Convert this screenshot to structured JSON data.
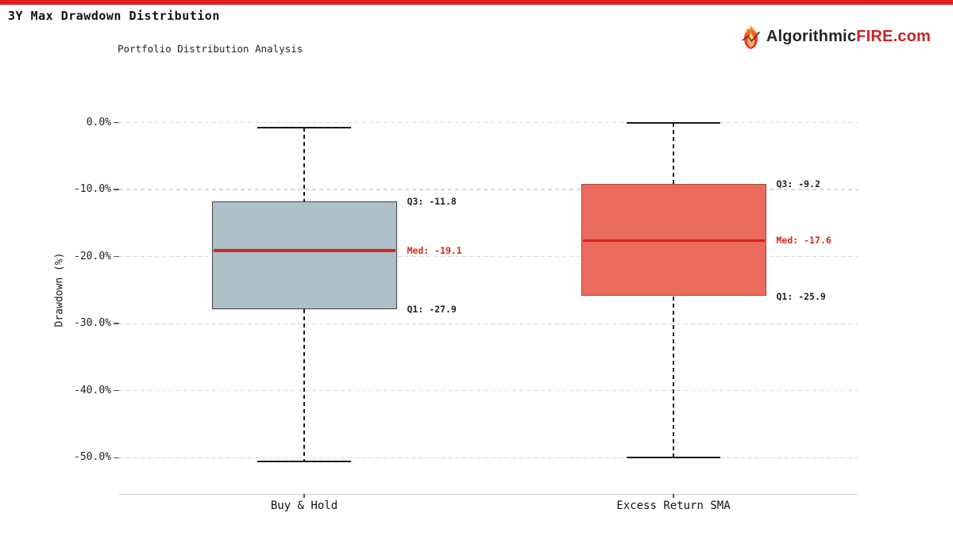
{
  "page": {
    "title": "3Y Max Drawdown Distribution",
    "subtitle": "Portfolio Distribution Analysis",
    "brand": {
      "prefix": "Algorithmic",
      "suffix": "FIRE.com",
      "icon": "fire-icon"
    }
  },
  "colors": {
    "accent_bar": "#dc1d1d",
    "brand_dark": "#262626",
    "brand_red": "#c5242b",
    "median_red": "#d62518",
    "annotation_text": "#1f1f1f",
    "grid": "#d9d9d9",
    "axis_line": "#cfcfcf",
    "tick": "#555555",
    "title_text": "#111111"
  },
  "chart_data": {
    "type": "boxplot",
    "title": "3Y Max Drawdown Distribution",
    "subtitle": "Portfolio Distribution Analysis",
    "ylabel": "Drawdown (%)",
    "ylim": [
      -55.5,
      3.0
    ],
    "yticks": [
      0,
      -10,
      -20,
      -30,
      -40,
      -50
    ],
    "ytick_labels": [
      "0.0%",
      "-10.0%",
      "-20.0%",
      "-30.0%",
      "-40.0%",
      "-50.0%"
    ],
    "grid": "dashed-horizontal",
    "categories": [
      "Buy & Hold",
      "Excess Return SMA"
    ],
    "series": [
      {
        "name": "Buy & Hold",
        "whisker_high": -0.8,
        "q3": -11.8,
        "median": -19.1,
        "q1": -27.9,
        "whisker_low": -50.5,
        "labels": {
          "q3": "Q3: -11.8",
          "median": "Med: -19.1",
          "q1": "Q1: -27.9"
        },
        "fill": "#aec0c9",
        "border": "#424242"
      },
      {
        "name": "Excess Return SMA",
        "whisker_high": 0.0,
        "q3": -9.2,
        "median": -17.6,
        "q1": -25.9,
        "whisker_low": -50.0,
        "labels": {
          "q3": "Q3: -9.2",
          "median": "Med: -17.6",
          "q1": "Q1: -25.9"
        },
        "fill": "#ea6a5e",
        "border": "#a8443d"
      }
    ]
  }
}
